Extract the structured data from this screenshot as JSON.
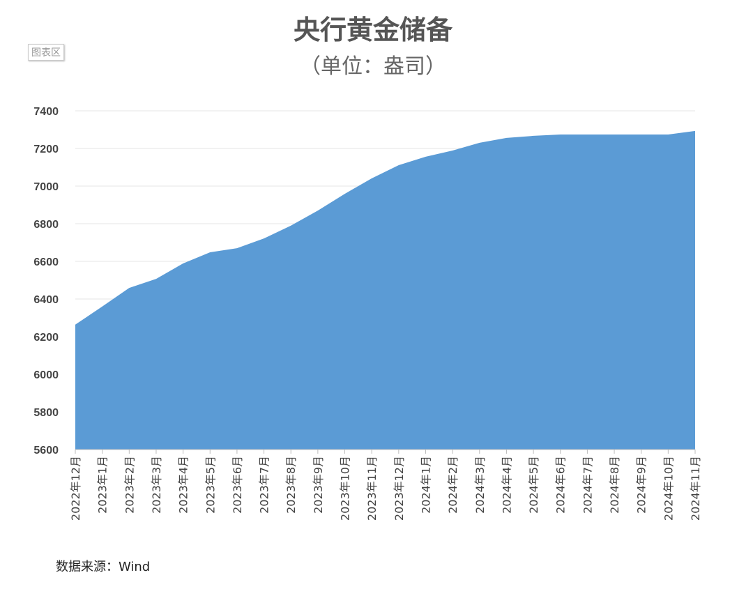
{
  "chart_area_label": "图表区",
  "footer": "数据来源：Wind",
  "chart_data": {
    "type": "area",
    "title": "央行黄金储备",
    "subtitle": "（单位：盎司）",
    "xlabel": "",
    "ylabel": "",
    "ylim": [
      5600,
      7400
    ],
    "yticks": [
      5600,
      5800,
      6000,
      6200,
      6400,
      6600,
      6800,
      7000,
      7200,
      7400
    ],
    "grid": true,
    "color": "#5b9bd5",
    "categories": [
      "2022年12月",
      "2023年1月",
      "2023年2月",
      "2023年3月",
      "2023年4月",
      "2023年5月",
      "2023年6月",
      "2023年7月",
      "2023年8月",
      "2023年9月",
      "2023年10月",
      "2023年11月",
      "2023年12月",
      "2024年1月",
      "2024年2月",
      "2024年3月",
      "2024年4月",
      "2024年5月",
      "2024年6月",
      "2024年7月",
      "2024年8月",
      "2024年9月",
      "2024年10月",
      "2024年11月"
    ],
    "values": [
      6264,
      6360,
      6459,
      6507,
      6589,
      6648,
      6670,
      6722,
      6790,
      6870,
      6959,
      7041,
      7111,
      7156,
      7189,
      7230,
      7256,
      7267,
      7274,
      7274,
      7274,
      7274,
      7274,
      7293
    ]
  }
}
